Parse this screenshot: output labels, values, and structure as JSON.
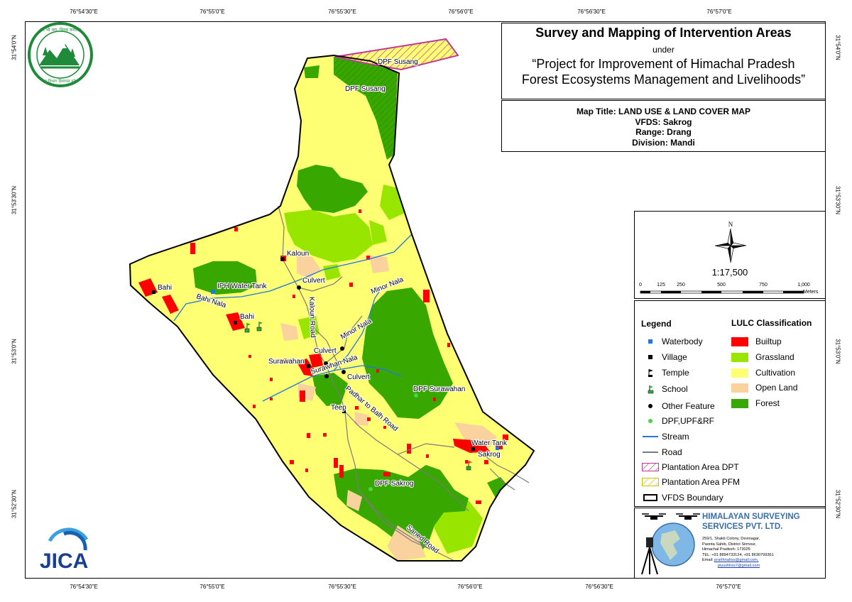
{
  "title": {
    "main": "Survey and Mapping of Intervention Areas",
    "under": "under",
    "project_line1": "“Project for Improvement of Himachal Pradesh",
    "project_line2": "Forest Ecosystems Management and Livelihoods”"
  },
  "map_info": {
    "map_title": "Map Title: LAND USE & LAND COVER MAP",
    "vfds": "VFDS: Sakrog",
    "range": "Range: Drang",
    "division": "Division: Mandi"
  },
  "coordinates": {
    "top": [
      "76°54'30\"E",
      "76°55'0\"E",
      "76°55'30\"E",
      "76°56'0\"E",
      "76°56'30\"E",
      "76°57'0\"E"
    ],
    "bottom": [
      "76°54'30\"E",
      "76°55'0\"E",
      "76°55'30\"E",
      "76°56'0\"E",
      "76°56'30\"E",
      "76°57'0\"E"
    ],
    "left": [
      "31°54'0\"N",
      "31°53'30\"N",
      "31°53'0\"N",
      "31°52'30\"N"
    ],
    "right": [
      "31°54'0\"N",
      "31°53'30\"N",
      "31°53'0\"N",
      "31°52'30\"N"
    ]
  },
  "scale": {
    "north": "N",
    "ratio": "1:17,500",
    "ticks": [
      "0",
      "125",
      "250",
      "500",
      "750",
      "1,000"
    ],
    "units": "Meters"
  },
  "legend": {
    "title": "Legend",
    "items": [
      {
        "label": "Waterbody",
        "icon": "waterbody-icon"
      },
      {
        "label": "Village",
        "icon": "village-icon"
      },
      {
        "label": "Temple",
        "icon": "temple-icon"
      },
      {
        "label": "School",
        "icon": "school-icon"
      },
      {
        "label": "Other Feature",
        "icon": "other-feature-icon"
      },
      {
        "label": "DPF,UPF&RF",
        "icon": "forest-point-icon"
      },
      {
        "label": "Stream",
        "icon": "stream-line-icon"
      },
      {
        "label": "Road",
        "icon": "road-line-icon"
      },
      {
        "label": "Plantation Area DPT",
        "icon": "plantation-dpt-icon"
      },
      {
        "label": "Plantation Area PFM",
        "icon": "plantation-pfm-icon"
      },
      {
        "label": "VFDS Boundary",
        "icon": "vfds-boundary-icon"
      }
    ],
    "lulc_title": "LULC Classification",
    "lulc": [
      {
        "label": "Builtup",
        "color": "#ff0000"
      },
      {
        "label": "Grassland",
        "color": "#98e600"
      },
      {
        "label": "Cultivation",
        "color": "#ffff73"
      },
      {
        "label": "Open Land",
        "color": "#fad29e"
      },
      {
        "label": "Forest",
        "color": "#38a800"
      }
    ]
  },
  "company": {
    "name_line1": "HIMALAYAN SURVEYING",
    "name_line2": "SERVICES PVT. LTD.",
    "address": [
      "259/1, Shakti Colony, Devinagar,",
      "Paonta Sahib, District Sirmour,",
      "Himachal Pradesh- 173025",
      "TEL: +91 8894733124, +91 8630799361"
    ],
    "email_label": "Email:",
    "email1": "prarthnahss@gmail.com,",
    "email2": "piyushhss7@gmail.com"
  },
  "logos": {
    "hp_forest_text": "हम भी धरा, धिरक वनवत्ता",
    "hp_forest_bottom": "वन विभाग हिमाचल प्रदेश",
    "jica": "JICA"
  },
  "map_labels": {
    "dpf_susang_1": "DPF Susang",
    "dpf_susang_2": "DPF Susang",
    "kaloun": "Kaloun",
    "bahi_1": "Bahi",
    "bahi_2": "Bahi",
    "iph_water_tank": "IPH Water Tank",
    "bahi_nala": "Bahi Nala",
    "culvert_1": "Culvert",
    "culvert_2": "Culvert",
    "culvert_3": "Culvert",
    "kaloun_road": "Kaloun Road",
    "minor_nala_1": "Minor Nala",
    "minor_nala_2": "Minor Nala",
    "surawahan": "Surawahan",
    "surawhan_nala": "Surawhan Nala",
    "dpf_surawahan": "DPF Surawahan",
    "teep": "Teep",
    "padhar_to_balh_road": "Padhar to Balh Road",
    "water_tank": "Water Tank",
    "sakrog": "Sakrog",
    "dpf_sakrog": "DPF Sakrog",
    "saned_road": "Saned Road"
  },
  "colors": {
    "builtup": "#ff0000",
    "grassland": "#98e600",
    "cultivation": "#ffff73",
    "open_land": "#fad29e",
    "forest": "#38a800",
    "stream": "#1f78e0",
    "road": "#7a7a7a",
    "dpt_hatch": "#c0399a",
    "pfm_hatch": "#d4c200"
  }
}
